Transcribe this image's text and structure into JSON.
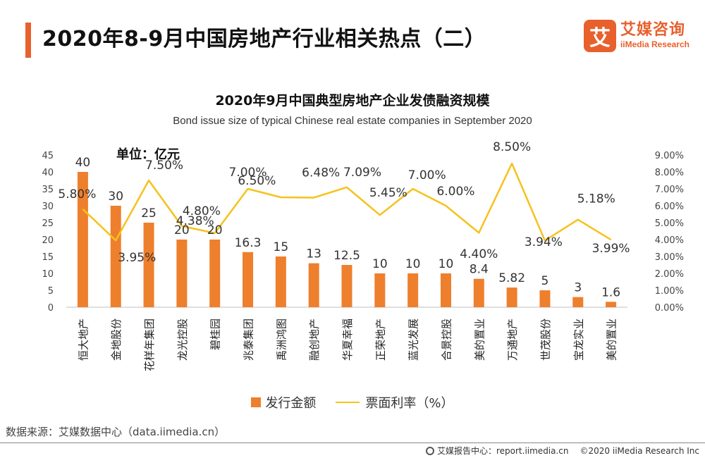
{
  "header": {
    "title": "2020年8-9月中国房地产行业相关热点（二）",
    "logo_mark": "艾",
    "logo_cn": "艾媒咨询",
    "logo_en": "iiMedia Research"
  },
  "chart_data": {
    "type": "bar",
    "title": "2020年9月中国典型房地产企业发债融资规模",
    "subtitle": "Bond issue size of typical Chinese real estate companies in September 2020",
    "unit_label": "单位：亿元",
    "categories": [
      "恒大地产",
      "金地股份",
      "花样年集团",
      "龙光控股",
      "碧桂园",
      "兆泰集团",
      "禹洲鸿图",
      "融创地产",
      "华夏幸福",
      "正荣地产",
      "蓝光发展",
      "合景控股",
      "美的置业",
      "万通地产",
      "世茂股份",
      "宝龙实业",
      "美的置业"
    ],
    "series": [
      {
        "name": "发行金额",
        "type": "bar",
        "axis": "left",
        "color": "#ee7f2d",
        "values": [
          40,
          30,
          25,
          20,
          20,
          16.3,
          15,
          13,
          12.5,
          10,
          10,
          10,
          8.4,
          5.82,
          5,
          3,
          1.6
        ],
        "labels": [
          "40",
          "30",
          "25",
          "20",
          "20",
          "16.3",
          "15",
          "13",
          "12.5",
          "10",
          "10",
          "10",
          "8.4",
          "5.82",
          "5",
          "3",
          "1.6"
        ]
      },
      {
        "name": "票面利率（%）",
        "type": "line",
        "axis": "right",
        "color": "#f6c21b",
        "values": [
          5.8,
          3.95,
          7.5,
          4.8,
          4.38,
          7.0,
          6.5,
          6.48,
          7.09,
          5.45,
          7.0,
          6.0,
          4.4,
          8.5,
          3.94,
          5.18,
          3.99
        ],
        "labels": [
          "5.80%",
          "3.95%",
          "7.50%",
          "4.80%",
          "4.38%",
          "7.00%",
          "6.50%",
          "6.48%",
          "7.09%",
          "5.45%",
          "7.00%",
          "6.00%",
          "4.40%",
          "8.50%",
          "3.94%",
          "5.18%",
          "3.99%"
        ]
      }
    ],
    "y_left": {
      "min": 0,
      "max": 45,
      "ticks": [
        "0",
        "5",
        "10",
        "15",
        "20",
        "25",
        "30",
        "35",
        "40",
        "45"
      ]
    },
    "y_right": {
      "min": 0,
      "max": 9,
      "ticks": [
        "0.00%",
        "1.00%",
        "2.00%",
        "3.00%",
        "4.00%",
        "5.00%",
        "6.00%",
        "7.00%",
        "8.00%",
        "9.00%"
      ]
    },
    "grid": false,
    "legend_position": "bottom"
  },
  "legend": {
    "bar_label": "发行金额",
    "line_label": "票面利率（%）"
  },
  "source": "数据来源：艾媒数据中心（data.iimedia.cn）",
  "footer": {
    "report": "艾媒报告中心：report.iimedia.cn",
    "copyright": "©2020  iiMedia Research  Inc"
  }
}
